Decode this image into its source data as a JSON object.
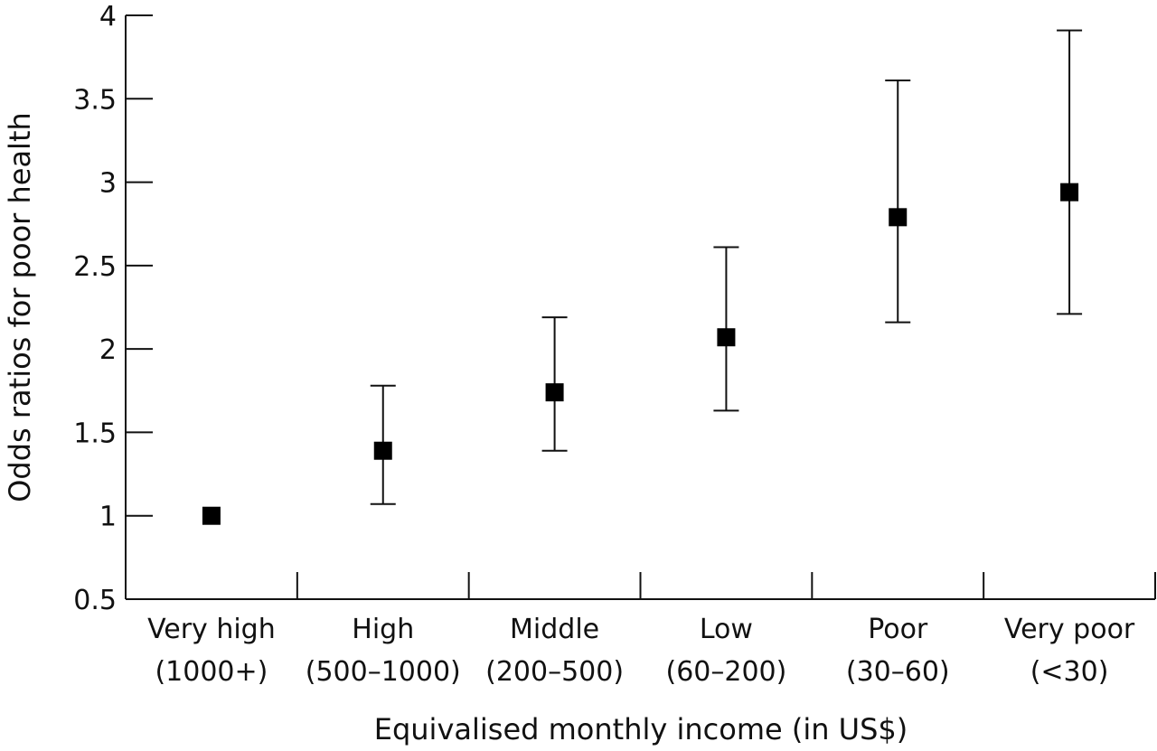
{
  "chart_data": {
    "type": "scatter",
    "title": "",
    "xlabel": "Equivalised monthly income (in US$)",
    "ylabel": "Odds ratios for poor health",
    "ylim": [
      0.5,
      4
    ],
    "yticks": [
      "0.5",
      "1",
      "1.5",
      "2",
      "2.5",
      "3",
      "3.5",
      "4"
    ],
    "categories": [
      {
        "line1": "Very high",
        "line2": "(1000+)"
      },
      {
        "line1": "High",
        "line2": "(500–1000)"
      },
      {
        "line1": "Middle",
        "line2": "(200–500)"
      },
      {
        "line1": "Low",
        "line2": "(60–200)"
      },
      {
        "line1": "Poor",
        "line2": "(30–60)"
      },
      {
        "line1": "Very poor",
        "line2": "(<30)"
      }
    ],
    "series": [
      {
        "values": [
          1.0,
          1.39,
          1.74,
          2.07,
          2.79,
          2.94
        ],
        "ci_lower": [
          null,
          1.07,
          1.39,
          1.63,
          2.16,
          2.21
        ],
        "ci_upper": [
          null,
          1.78,
          2.19,
          2.61,
          3.61,
          3.91
        ]
      }
    ],
    "marker_color": "#000000",
    "grid": false,
    "legend": "none"
  }
}
